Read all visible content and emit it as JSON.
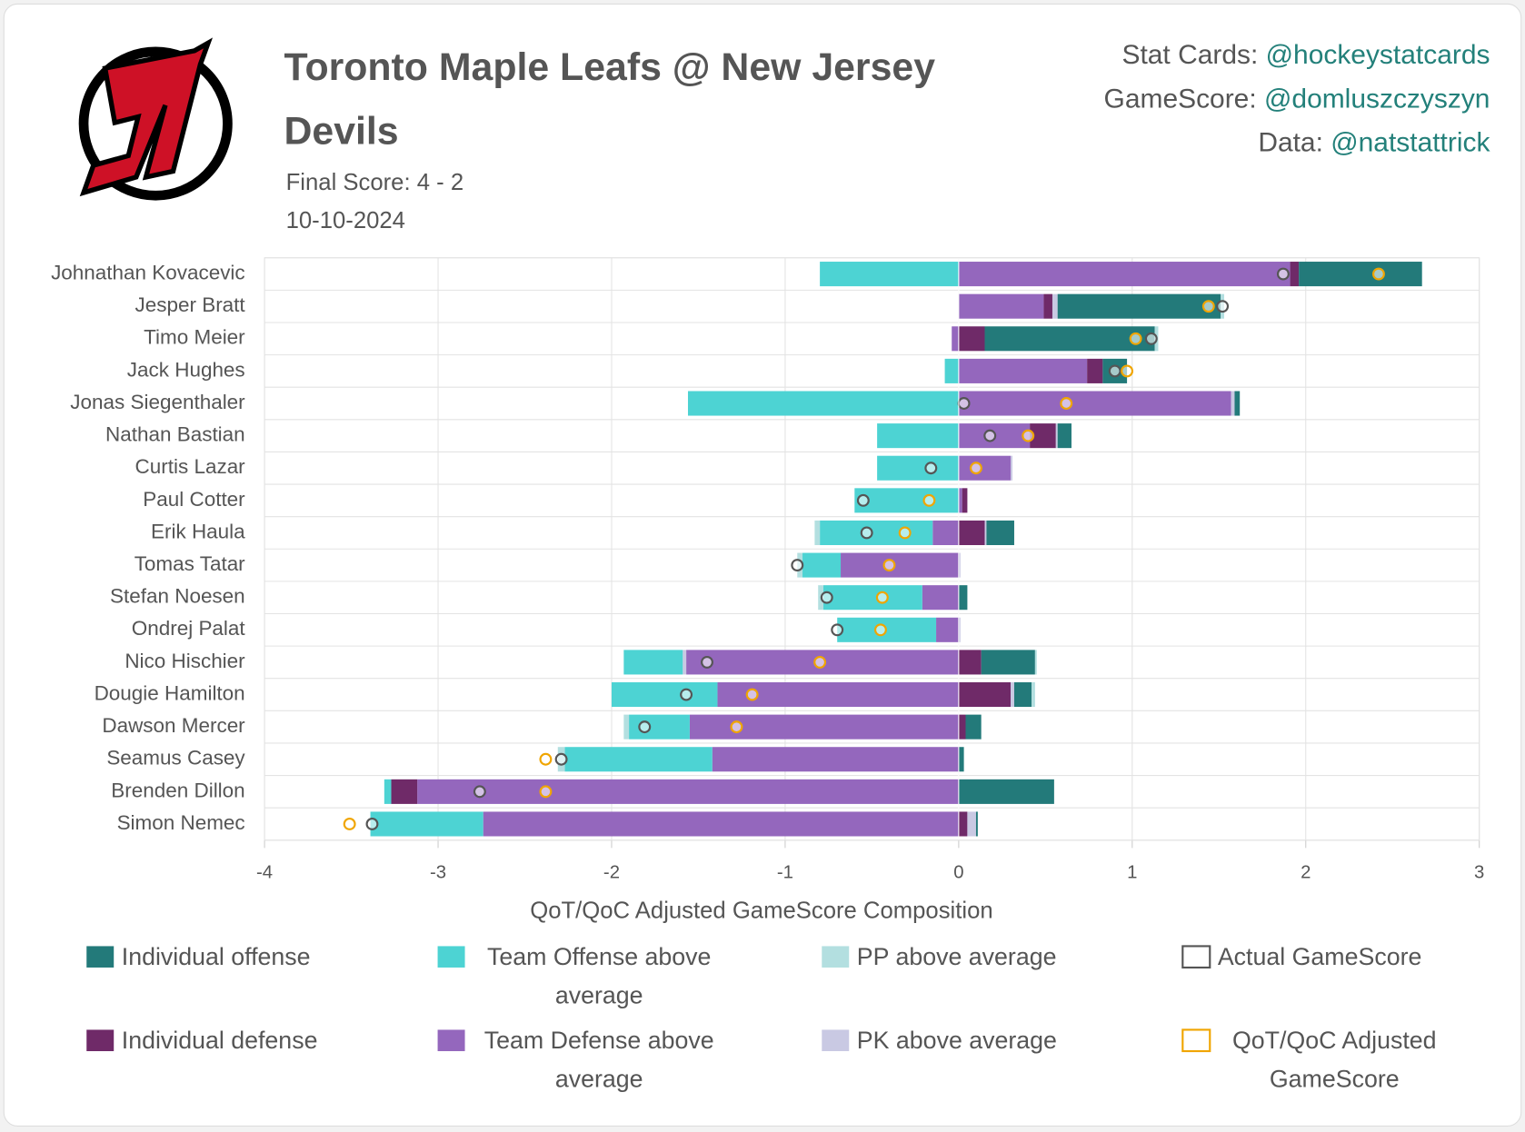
{
  "header": {
    "title": "Toronto Maple Leafs @ New Jersey Devils",
    "subtitle": "Final Score: 4 - 2",
    "date": "10-10-2024",
    "credits": [
      {
        "label": "Stat Cards:",
        "handle": "@hockeystatcards"
      },
      {
        "label": "GameScore:",
        "handle": "@domluszczyszyn"
      },
      {
        "label": "Data:",
        "handle": "@natstattrick"
      }
    ]
  },
  "chart_data": {
    "type": "diverging-stacked-bar",
    "xlabel": "QoT/QoC Adjusted GameScore Composition",
    "categories": [
      "Johnathan Kovacevic",
      "Jesper Bratt",
      "Timo Meier",
      "Jack Hughes",
      "Jonas Siegenthaler",
      "Nathan Bastian",
      "Curtis Lazar",
      "Paul Cotter",
      "Erik Haula",
      "Tomas Tatar",
      "Stefan Noesen",
      "Ondrej Palat",
      "Nico Hischier",
      "Dougie Hamilton",
      "Dawson Mercer",
      "Seamus Casey",
      "Brenden Dillon",
      "Simon Nemec"
    ],
    "xlim": [
      -4,
      3
    ],
    "xticks": [
      -4,
      -3,
      -2,
      -1,
      0,
      1,
      2,
      3
    ],
    "grid": true,
    "series": [
      {
        "name": "Individual offense",
        "color": "#237a7a",
        "values": [
          0.71,
          0.94,
          0.98,
          0.14,
          0.03,
          0.08,
          0,
          0,
          0.16,
          0,
          0.05,
          0,
          0.31,
          0.1,
          0.09,
          0.03,
          0.55,
          0.01
        ]
      },
      {
        "name": "Team Offense above average",
        "color": "#4dd3d3",
        "values": [
          -0.8,
          0,
          0,
          -0.08,
          -1.56,
          -0.47,
          -0.47,
          -0.6,
          -0.65,
          -0.22,
          -0.57,
          -0.57,
          -0.34,
          -0.61,
          -0.35,
          -0.85,
          -0.04,
          -0.65
        ]
      },
      {
        "name": "PP above average",
        "color": "#b3dfe0",
        "values": [
          0,
          0.02,
          0.02,
          0,
          0,
          0,
          0,
          0,
          -0.03,
          -0.03,
          -0.03,
          0,
          0.01,
          0.02,
          -0.03,
          -0.04,
          0,
          0
        ]
      },
      {
        "name": "Individual defense",
        "color": "#6f2a68",
        "values": [
          0.05,
          0.05,
          0.15,
          0.09,
          0,
          0.15,
          0,
          0.03,
          0.15,
          0,
          0,
          0,
          0.13,
          0.3,
          0.04,
          0,
          -0.15,
          0.05
        ]
      },
      {
        "name": "Team Defense above average",
        "color": "#9467bd",
        "values": [
          1.91,
          0.49,
          -0.04,
          0.74,
          1.57,
          0.41,
          0.3,
          0.02,
          -0.15,
          -0.68,
          -0.21,
          -0.13,
          -1.57,
          -1.39,
          -1.55,
          -1.42,
          -3.12,
          -2.74
        ]
      },
      {
        "name": "PK above average",
        "color": "#c9c9e3",
        "values": [
          0,
          0.03,
          0,
          0,
          0.02,
          0.01,
          0.01,
          0,
          0.01,
          0.01,
          0,
          0.01,
          -0.02,
          0.02,
          0,
          0,
          0,
          0.05
        ]
      }
    ],
    "markers": [
      {
        "name": "Actual GameScore",
        "color": "#555555",
        "values": [
          1.87,
          1.52,
          1.11,
          0.9,
          0.03,
          0.18,
          -0.16,
          -0.55,
          -0.53,
          -0.93,
          -0.76,
          -0.7,
          -1.45,
          -1.57,
          -1.81,
          -2.29,
          -2.76,
          -3.38
        ]
      },
      {
        "name": "QoT/QoC Adjusted GameScore",
        "color": "#f0a500",
        "values": [
          2.42,
          1.44,
          1.02,
          0.97,
          0.62,
          0.4,
          0.1,
          -0.17,
          -0.31,
          -0.4,
          -0.44,
          -0.45,
          -0.8,
          -1.19,
          -1.28,
          -2.38,
          -2.38,
          -3.51
        ]
      }
    ]
  }
}
